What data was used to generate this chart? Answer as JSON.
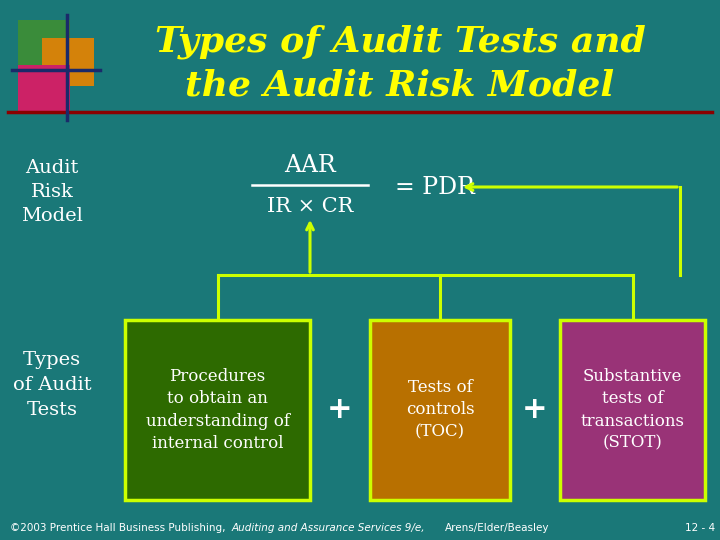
{
  "bg_color": "#1a7878",
  "title_line1": "Types of Audit Tests and",
  "title_line2": "the Audit Risk Model",
  "title_color": "#ffff00",
  "title_fontsize": 26,
  "separator_color": "#8b0000",
  "left_label_line1": "Audit",
  "left_label_line2": "Risk",
  "left_label_line3": "Model",
  "left_label2_line1": "Types",
  "left_label2_line2": "of Audit",
  "left_label2_line3": "Tests",
  "left_label_color": "#ffffff",
  "formula_numerator": "AAR",
  "formula_denominator": "IR × CR",
  "formula_equals": "= PDR",
  "formula_color": "#ffffff",
  "box1_text": "Procedures\nto obtain an\nunderstanding of\ninternal control",
  "box1_bg": "#2d6a00",
  "box1_border": "#ccff00",
  "box2_text": "Tests of\ncontrols\n(TOC)",
  "box2_bg": "#b87000",
  "box2_border": "#ccff00",
  "box3_text": "Substantive\ntests of\ntransactions\n(STOT)",
  "box3_bg": "#993377",
  "box3_border": "#ccff00",
  "plus_color": "#ffffff",
  "arrow_color": "#ccff00",
  "connector_color": "#ccff00",
  "footer_text": "©2003 Prentice Hall Business Publishing,",
  "footer_italic": "Auditing and Assurance Services 9/e,",
  "footer_text2": "Arens/Elder/Beasley",
  "footer_pagenum": "12 - 4",
  "footer_color": "#ffffff",
  "icon_green": "#3a8c3a",
  "icon_orange": "#d4820a",
  "icon_pink": "#cc2266",
  "icon_line": "#1a2a6a"
}
